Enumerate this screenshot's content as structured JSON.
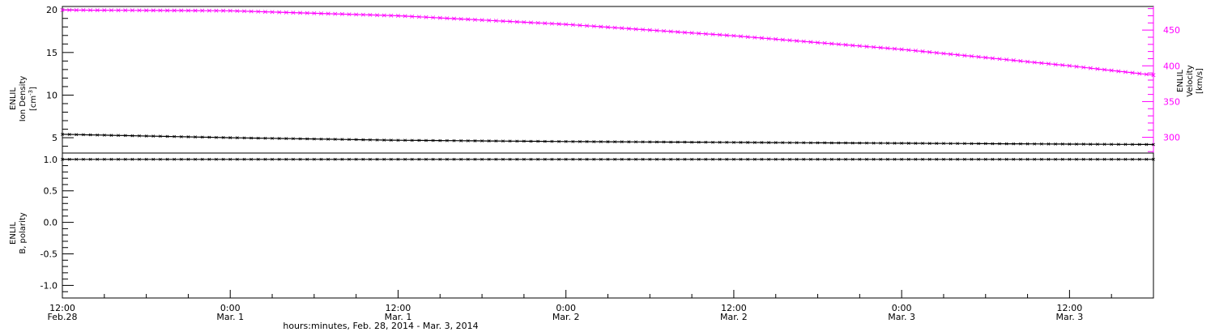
{
  "chart_data": [
    {
      "type": "line",
      "panel": "top",
      "left_axis": {
        "label_lines": [
          "ENLIL",
          "Ion Density"
        ],
        "unit_base": "[cm",
        "unit_sup": "-3",
        "unit_close": "]",
        "ylim": [
          3.2,
          20.4
        ],
        "ticks": [
          5,
          10,
          15,
          20
        ],
        "tick_labels": [
          "5",
          "10",
          "15",
          "20"
        ]
      },
      "right_axis": {
        "label_lines": [
          "ENLIL",
          "Velocity",
          "[km/s]"
        ],
        "color": "#ff00ff",
        "ylim": [
          278,
          483
        ],
        "ticks": [
          300,
          350,
          400,
          450
        ],
        "tick_labels": [
          "300",
          "350",
          "400",
          "450"
        ]
      },
      "series": [
        {
          "axis": "left",
          "color": "#000000",
          "x_hours": [
            0,
            12,
            24,
            36,
            48,
            60,
            72,
            78
          ],
          "values": [
            5.4,
            5.0,
            4.7,
            4.55,
            4.45,
            4.35,
            4.25,
            4.2
          ]
        },
        {
          "axis": "right",
          "color": "#ff00ff",
          "x_hours": [
            0,
            12,
            24,
            36,
            48,
            60,
            72,
            78
          ],
          "values": [
            478,
            477,
            470,
            458,
            442,
            423,
            400,
            387
          ]
        }
      ]
    },
    {
      "type": "line",
      "panel": "bottom",
      "left_axis": {
        "label_lines": [
          "ENLIL",
          "B, polarity"
        ],
        "ylim": [
          -1.2,
          1.1
        ],
        "ticks": [
          -1.0,
          -0.5,
          0.0,
          0.5,
          1.0
        ],
        "tick_labels": [
          "-1.0",
          "-0.5",
          "0.0",
          "0.5",
          "1.0"
        ]
      },
      "series": [
        {
          "axis": "left",
          "color": "#000000",
          "x_hours": [
            0,
            78
          ],
          "values": [
            1.0,
            1.0
          ]
        }
      ]
    }
  ],
  "x_axis": {
    "start": "2014-02-28 12:00",
    "end": "2014-03-03 18:00",
    "range_hours": [
      0,
      78
    ],
    "major_ticks_hours": [
      0,
      12,
      24,
      36,
      48,
      60,
      72
    ],
    "tick_labels_line1": [
      "12:00",
      "0:00",
      "12:00",
      "0:00",
      "12:00",
      "0:00",
      "12:00"
    ],
    "tick_labels_line2": [
      "Feb.28",
      "Mar. 1",
      "Mar. 1",
      "Mar. 2",
      "Mar. 2",
      "Mar. 3",
      "Mar. 3"
    ],
    "title": "hours:minutes, Feb. 28, 2014 - Mar.  3, 2014"
  }
}
